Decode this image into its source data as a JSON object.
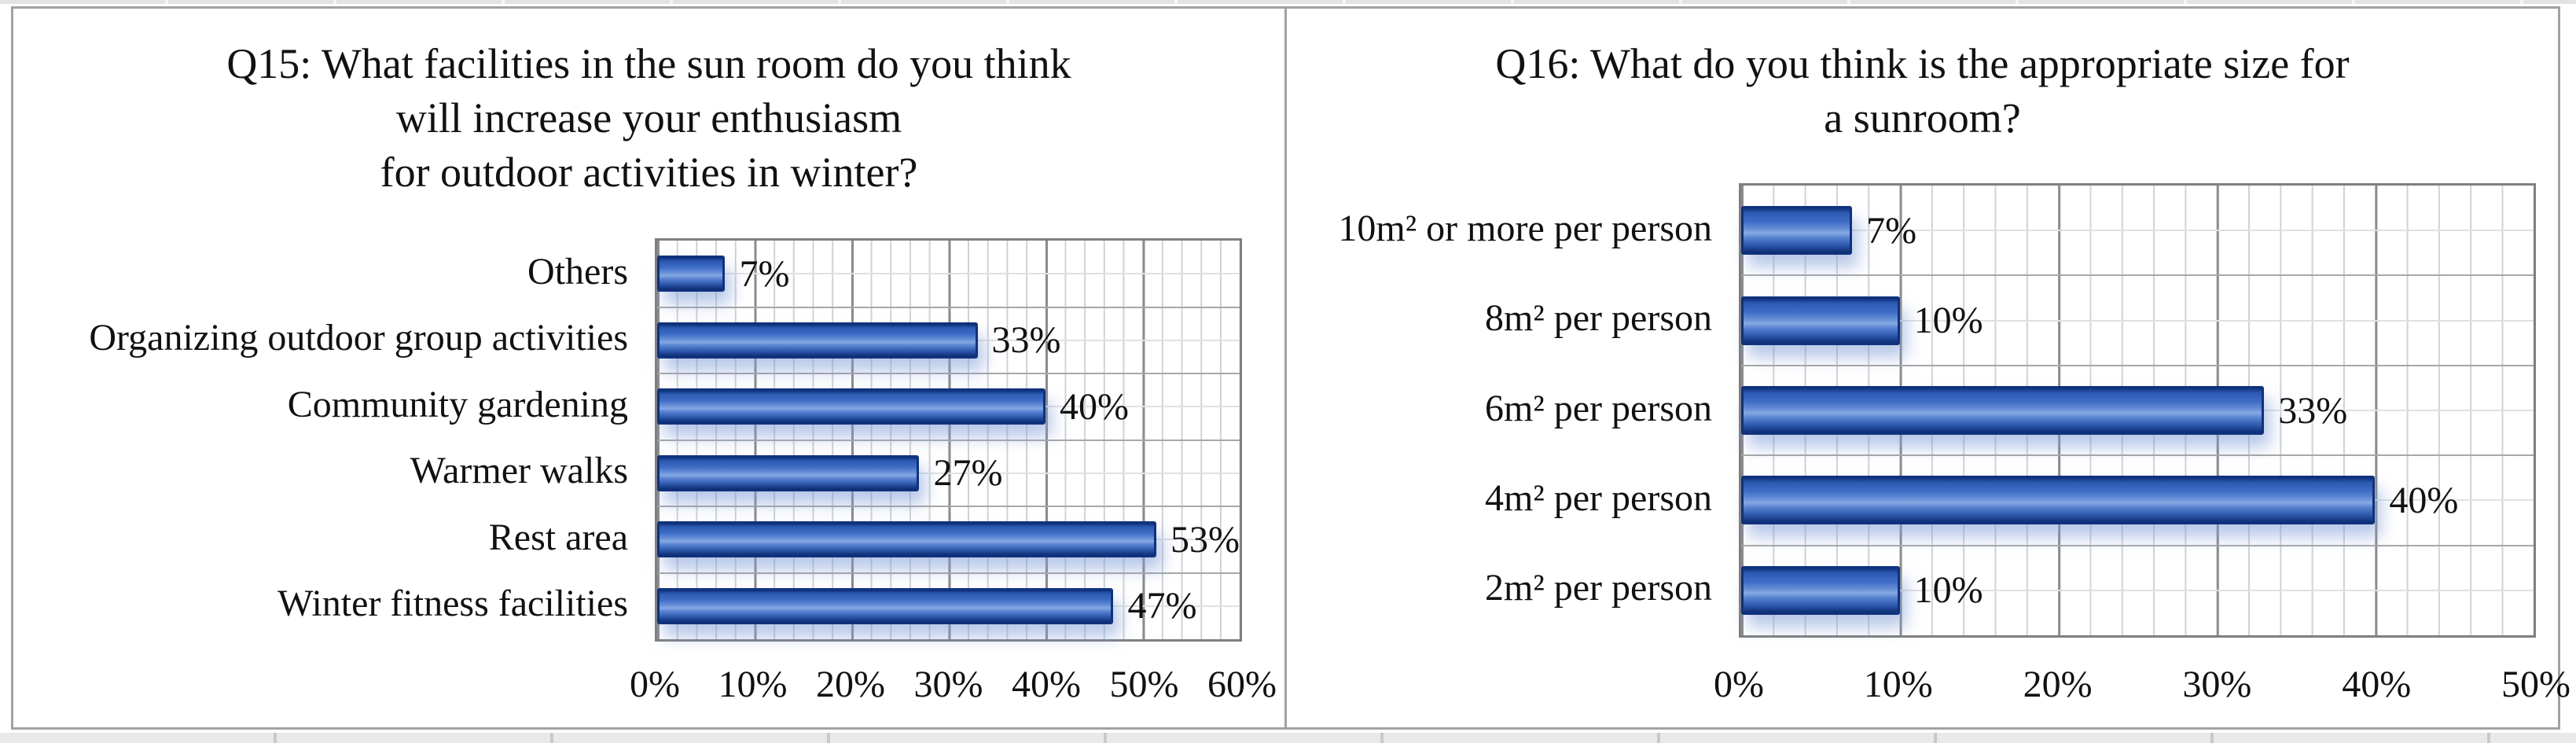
{
  "figure": {
    "panels": [
      {
        "id": "q15",
        "title_lines": [
          "Q15: What facilities in the sun room do you think",
          "will increase your enthusiasm",
          "for outdoor activities in winter?"
        ],
        "rows": [
          {
            "label": "Others",
            "value": 7,
            "value_label": "7%"
          },
          {
            "label": "Organizing outdoor group activities",
            "value": 33,
            "value_label": "33%"
          },
          {
            "label": "Community gardening",
            "value": 40,
            "value_label": "40%"
          },
          {
            "label": "Warmer walks",
            "value": 27,
            "value_label": "27%"
          },
          {
            "label": "Rest area",
            "value": 53,
            "value_label": "53%"
          },
          {
            "label": "Winter fitness facilities",
            "value": 47,
            "value_label": "47%"
          }
        ],
        "axis": {
          "max": 60,
          "ticks": [
            "0%",
            "10%",
            "20%",
            "30%",
            "40%",
            "50%",
            "60%"
          ]
        }
      },
      {
        "id": "q16",
        "title_lines": [
          "Q16: What do you think is the appropriate size for",
          "a sunroom?"
        ],
        "rows": [
          {
            "label": "10m² or more per person",
            "value": 7,
            "value_label": "7%"
          },
          {
            "label": "8m² per person",
            "value": 10,
            "value_label": "10%"
          },
          {
            "label": "6m² per person",
            "value": 33,
            "value_label": "33%"
          },
          {
            "label": "4m² per person",
            "value": 40,
            "value_label": "40%"
          },
          {
            "label": "2m² per person",
            "value": 10,
            "value_label": "10%"
          }
        ],
        "axis": {
          "max": 50,
          "ticks": [
            "0%",
            "10%",
            "20%",
            "30%",
            "40%",
            "50%"
          ]
        }
      }
    ],
    "colors": {
      "bar_fill": "#2e5fbe",
      "bar_border": "#10327c",
      "grid_major": "#8c8c8c",
      "grid_minor": "#cfd2d6",
      "category_gridline": "#a8a8a8",
      "frame_border": "#a2a2a2",
      "text": "#111111",
      "background": "#ffffff"
    }
  },
  "chart_data": [
    {
      "type": "bar",
      "orientation": "horizontal",
      "title": "Q15: What facilities in the sun room do you think will increase your enthusiasm for outdoor activities in winter?",
      "categories": [
        "Others",
        "Organizing outdoor group activities",
        "Community gardening",
        "Warmer walks",
        "Rest area",
        "Winter fitness facilities"
      ],
      "values": [
        7,
        33,
        40,
        27,
        53,
        47
      ],
      "data_labels": [
        "7%",
        "33%",
        "40%",
        "27%",
        "53%",
        "47%"
      ],
      "xlabel": "",
      "ylabel": "",
      "xlim": [
        0,
        60
      ],
      "x_ticks": [
        "0%",
        "10%",
        "20%",
        "30%",
        "40%",
        "50%",
        "60%"
      ],
      "grid": true,
      "minor_grid_step_percent": 2,
      "legend": false,
      "bar_color": "#2e5fbe"
    },
    {
      "type": "bar",
      "orientation": "horizontal",
      "title": "Q16: What do you think is the appropriate size for a sunroom?",
      "categories": [
        "10m² or more per person",
        "8m² per person",
        "6m² per person",
        "4m² per person",
        "2m² per person"
      ],
      "values": [
        7,
        10,
        33,
        40,
        10
      ],
      "data_labels": [
        "7%",
        "10%",
        "33%",
        "40%",
        "10%"
      ],
      "xlabel": "",
      "ylabel": "",
      "xlim": [
        0,
        50
      ],
      "x_ticks": [
        "0%",
        "10%",
        "20%",
        "30%",
        "40%",
        "50%"
      ],
      "grid": true,
      "minor_grid_step_percent": 2,
      "legend": false,
      "bar_color": "#2e5fbe"
    }
  ]
}
